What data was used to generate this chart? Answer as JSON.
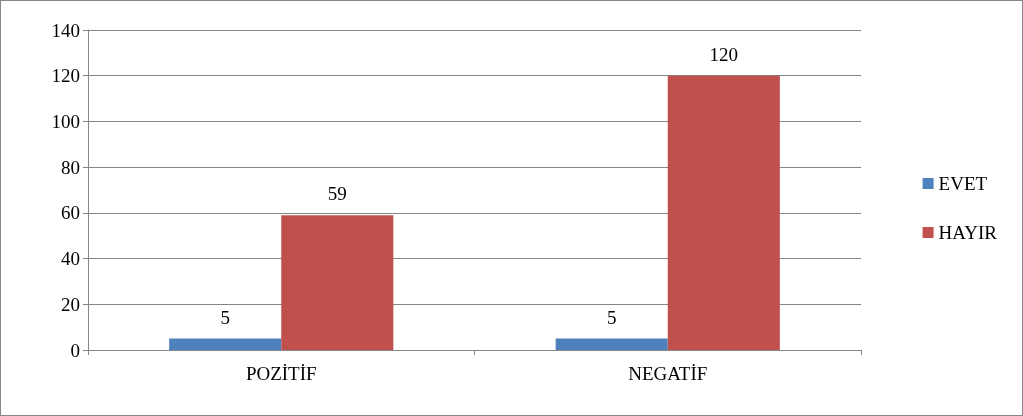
{
  "chart_data": {
    "type": "bar",
    "categories": [
      "POZİTİF",
      "NEGATİF"
    ],
    "series": [
      {
        "name": "EVET",
        "color": "#4f81bd",
        "values": [
          5,
          5
        ]
      },
      {
        "name": "HAYIR",
        "color": "#c0504d",
        "values": [
          59,
          120
        ]
      }
    ],
    "ylim": [
      0,
      140
    ],
    "yticks": [
      0,
      20,
      40,
      60,
      80,
      100,
      120,
      140
    ],
    "grid": "y",
    "legend": "right",
    "data_labels": true
  }
}
